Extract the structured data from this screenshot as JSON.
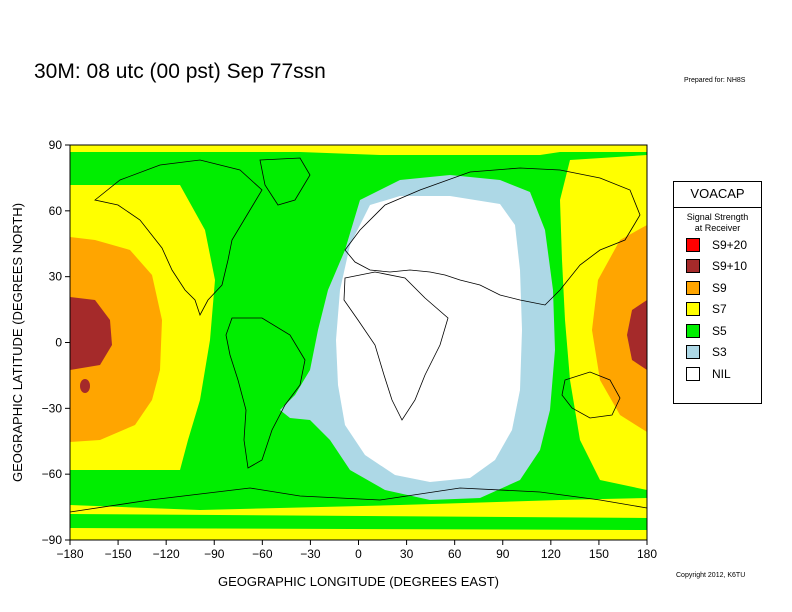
{
  "header": {
    "title": "30M:  08 utc (00 pst) Sep 77ssn",
    "prepared": "Prepared for: NH8S"
  },
  "footer": {
    "copyright": "Copyright 2012, K6TU"
  },
  "axes": {
    "xlabel": "GEOGRAPHIC LONGITUDE (DEGREES EAST)",
    "ylabel": "GEOGRAPHIC LATITUDE (DEGREES NORTH)",
    "xlim": [
      -180,
      180
    ],
    "ylim": [
      -90,
      90
    ],
    "xticks": [
      "−180",
      "−150",
      "−120",
      "−90",
      "−60",
      "−30",
      "0",
      "30",
      "60",
      "90",
      "120",
      "150",
      "180"
    ],
    "yticks": [
      "90",
      "60",
      "30",
      "0",
      "−30",
      "−60",
      "−90"
    ]
  },
  "legend": {
    "title": "VOACAP",
    "subtitle_line1": "Signal Strength",
    "subtitle_line2": "at Receiver",
    "items": [
      {
        "label": "S9+20",
        "color": "#ff0000"
      },
      {
        "label": "S9+10",
        "color": "#a52a2a"
      },
      {
        "label": "S9",
        "color": "#ffa500"
      },
      {
        "label": "S7",
        "color": "#ffff00"
      },
      {
        "label": "S5",
        "color": "#00ee00"
      },
      {
        "label": "S3",
        "color": "#add8e6"
      },
      {
        "label": "NIL",
        "color": "#ffffff"
      }
    ]
  }
}
